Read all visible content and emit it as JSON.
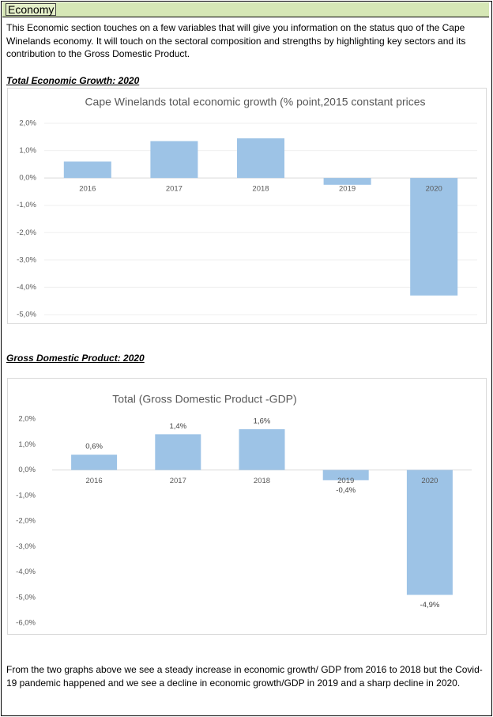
{
  "header": {
    "title": "Economy"
  },
  "intro": "This Economic section touches on a few variables that will give you information on the status quo of the Cape Winelands economy. It will touch on the sectoral composition and strengths by highlighting key sectors and its contribution to the Gross Domestic Product.",
  "sections": [
    {
      "heading": "Total Economic Growth: 2020"
    },
    {
      "heading": "Gross Domestic Product: 2020"
    }
  ],
  "conclusion": "From the two graphs above we see a steady increase in economic growth/ GDP from 2016 to 2018 but the Covid-19 pandemic happened and we see a decline in economic growth/GDP in 2019 and a sharp decline in 2020.",
  "chart_data": [
    {
      "type": "bar",
      "title": "Cape Winelands total economic growth (% point,2015 constant prices",
      "categories": [
        "2016",
        "2017",
        "2018",
        "2019",
        "2020"
      ],
      "values": [
        0.6,
        1.35,
        1.45,
        -0.25,
        -4.3
      ],
      "color": "#9dc3e6",
      "ylim": [
        -5,
        2
      ],
      "yticks": [
        {
          "value": 2,
          "label": "2,0%"
        },
        {
          "value": 1,
          "label": "1,0%"
        },
        {
          "value": 0,
          "label": "0,0%"
        },
        {
          "value": -1,
          "label": "-1,0%"
        },
        {
          "value": -2,
          "label": "-2,0%"
        },
        {
          "value": -3,
          "label": "-3,0%"
        },
        {
          "value": -4,
          "label": "-4,0%"
        },
        {
          "value": -5,
          "label": "-5,0%"
        }
      ],
      "grid": true
    },
    {
      "type": "bar",
      "title": "Total (Gross Domestic Product -GDP)",
      "categories": [
        "2016",
        "2017",
        "2018",
        "2019",
        "2020"
      ],
      "values": [
        0.6,
        1.4,
        1.6,
        -0.4,
        -4.9
      ],
      "value_labels": [
        "0,6%",
        "1,4%",
        "1,6%",
        "-0,4%",
        "-4,9%"
      ],
      "color": "#9dc3e6",
      "ylim": [
        -6,
        2
      ],
      "yticks": [
        {
          "value": 2,
          "label": "2,0%"
        },
        {
          "value": 1,
          "label": "1,0%"
        },
        {
          "value": 0,
          "label": "0,0%"
        },
        {
          "value": -1,
          "label": "-1,0%"
        },
        {
          "value": -2,
          "label": "-2,0%"
        },
        {
          "value": -3,
          "label": "-3,0%"
        },
        {
          "value": -4,
          "label": "-4,0%"
        },
        {
          "value": -5,
          "label": "-5,0%"
        },
        {
          "value": -6,
          "label": "-6,0%"
        }
      ],
      "grid": false
    }
  ]
}
